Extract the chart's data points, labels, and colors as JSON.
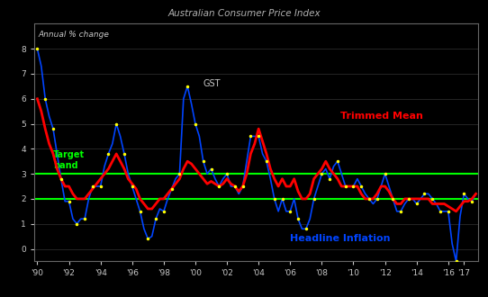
{
  "title": "Australian Consumer Price Index",
  "subtitle": "Annual % change",
  "background_color": "#000000",
  "plot_bg_color": "#000000",
  "text_color": "#c8c8c8",
  "title_color": "#b0b0b0",
  "target_band_low": 2,
  "target_band_high": 3,
  "headline_color": "#0044ff",
  "trimmed_color": "#ff0000",
  "target_band_color": "#00ff00",
  "dot_color": "#ffff00",
  "headline_label": "Headline Inflation",
  "trimmed_label": "Trimmed Mean",
  "target_label": "Target\nband",
  "gst_label": "GST",
  "ylim_low": -0.5,
  "ylim_high": 9.0,
  "yticks": [
    0,
    1,
    2,
    3,
    4,
    5,
    6,
    7,
    8
  ],
  "x_tick_years": [
    1990,
    1992,
    1994,
    1996,
    1998,
    2000,
    2002,
    2004,
    2006,
    2008,
    2010,
    2012,
    2014,
    2016,
    2017
  ],
  "x_tick_labels": [
    "'90",
    "'92",
    "'94",
    "'96",
    "'98",
    "'00",
    "'02",
    "'04",
    "'06",
    "'08",
    "'10",
    "'12",
    "'14",
    "'16",
    "'17"
  ],
  "headline": [
    8.0,
    7.3,
    6.0,
    5.3,
    4.8,
    3.8,
    2.8,
    1.9,
    1.9,
    1.2,
    1.0,
    1.2,
    1.2,
    2.0,
    2.5,
    2.5,
    2.5,
    3.3,
    3.8,
    4.2,
    5.0,
    4.5,
    3.8,
    3.0,
    2.5,
    2.0,
    1.5,
    0.8,
    0.4,
    0.5,
    1.2,
    1.6,
    1.5,
    2.0,
    2.4,
    2.8,
    3.0,
    6.0,
    6.5,
    5.8,
    5.0,
    4.5,
    3.5,
    3.0,
    3.2,
    2.8,
    2.5,
    2.8,
    3.0,
    2.5,
    2.5,
    2.2,
    2.5,
    3.5,
    4.5,
    4.5,
    4.5,
    3.8,
    3.5,
    2.8,
    2.0,
    1.5,
    2.0,
    1.5,
    1.5,
    2.0,
    1.2,
    0.8,
    0.8,
    1.2,
    2.0,
    2.5,
    3.0,
    3.2,
    2.8,
    3.3,
    3.5,
    3.0,
    2.5,
    2.5,
    2.5,
    2.8,
    2.5,
    2.2,
    2.0,
    1.8,
    2.0,
    2.5,
    3.0,
    2.5,
    2.0,
    1.5,
    1.5,
    1.8,
    2.0,
    2.0,
    1.8,
    2.0,
    2.2,
    2.2,
    2.0,
    1.8,
    1.5,
    1.5,
    1.5,
    0.2,
    -0.5,
    1.3,
    2.2,
    2.0,
    1.9,
    2.2
  ],
  "trimmed": [
    6.0,
    5.5,
    4.8,
    4.2,
    3.8,
    3.2,
    2.8,
    2.5,
    2.5,
    2.2,
    2.0,
    2.0,
    2.0,
    2.2,
    2.4,
    2.6,
    2.8,
    3.0,
    3.2,
    3.5,
    3.8,
    3.5,
    3.2,
    2.8,
    2.6,
    2.4,
    2.0,
    1.8,
    1.6,
    1.6,
    1.8,
    2.0,
    2.0,
    2.2,
    2.4,
    2.6,
    2.8,
    3.2,
    3.5,
    3.4,
    3.2,
    3.0,
    2.8,
    2.6,
    2.7,
    2.6,
    2.5,
    2.6,
    2.8,
    2.6,
    2.5,
    2.3,
    2.5,
    3.0,
    3.8,
    4.2,
    4.8,
    4.3,
    3.8,
    3.2,
    2.8,
    2.5,
    2.8,
    2.5,
    2.5,
    2.8,
    2.3,
    2.0,
    2.0,
    2.2,
    2.8,
    3.0,
    3.2,
    3.5,
    3.2,
    3.0,
    2.8,
    2.5,
    2.5,
    2.5,
    2.5,
    2.5,
    2.2,
    2.0,
    2.0,
    2.0,
    2.2,
    2.5,
    2.5,
    2.3,
    2.0,
    1.8,
    1.8,
    2.0,
    2.0,
    2.0,
    2.0,
    2.0,
    2.0,
    2.0,
    1.8,
    1.8,
    1.8,
    1.8,
    1.7,
    1.6,
    1.5,
    1.7,
    1.9,
    1.9,
    2.0,
    2.2
  ]
}
